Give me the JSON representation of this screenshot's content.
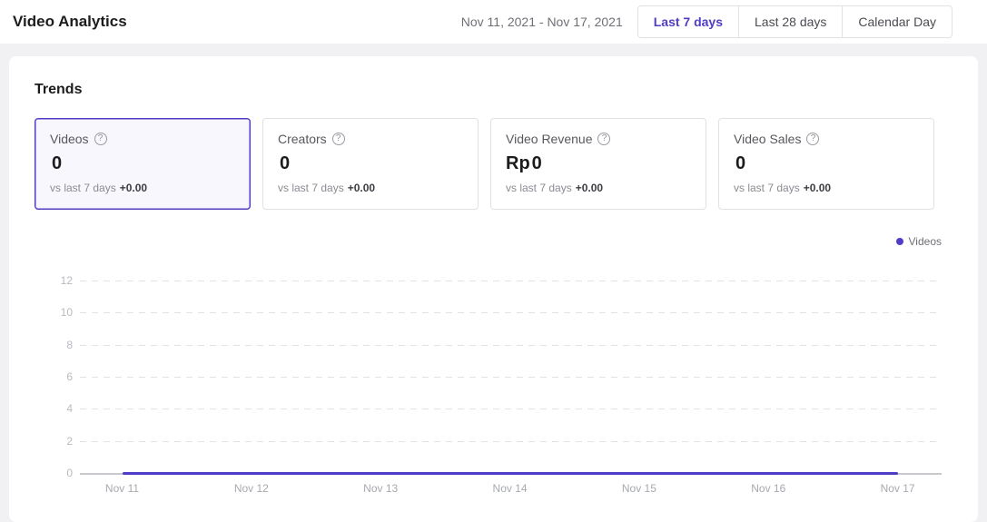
{
  "header": {
    "title": "Video Analytics",
    "date_range": "Nov 11, 2021 - Nov 17, 2021",
    "range_buttons": [
      {
        "label": "Last 7 days",
        "selected": true
      },
      {
        "label": "Last 28 days",
        "selected": false
      },
      {
        "label": "Calendar Day",
        "selected": false
      }
    ]
  },
  "trends": {
    "title": "Trends",
    "cards": [
      {
        "label": "Videos",
        "prefix": "",
        "value": "0",
        "compare_label": "vs last 7 days",
        "delta": "+0.00",
        "selected": true
      },
      {
        "label": "Creators",
        "prefix": "",
        "value": "0",
        "compare_label": "vs last 7 days",
        "delta": "+0.00",
        "selected": false
      },
      {
        "label": "Video Revenue",
        "prefix": "Rp",
        "value": "0",
        "compare_label": "vs last 7 days",
        "delta": "+0.00",
        "selected": false
      },
      {
        "label": "Video Sales",
        "prefix": "",
        "value": "0",
        "compare_label": "vs last 7 days",
        "delta": "+0.00",
        "selected": false
      }
    ]
  },
  "legend": {
    "label": "Videos",
    "color": "#4f3dc8"
  },
  "icons": {
    "help_glyph": "?"
  },
  "colors": {
    "accent": "#4f3dc8",
    "card_selected_bg": "#f7f7fd",
    "grid_line": "#e2e2e5",
    "baseline": "#c9c9cd",
    "axis_label": "#a7a9b0"
  },
  "chart_data": {
    "type": "line",
    "title": "Videos trend",
    "x": [
      "Nov 11",
      "Nov 12",
      "Nov 13",
      "Nov 14",
      "Nov 15",
      "Nov 16",
      "Nov 17"
    ],
    "series": [
      {
        "name": "Videos",
        "values": [
          0,
          0,
          0,
          0,
          0,
          0,
          0
        ]
      }
    ],
    "ylim": [
      0,
      12
    ],
    "yticks": [
      0,
      2,
      4,
      6,
      8,
      10,
      12
    ],
    "xlabel": "",
    "ylabel": "",
    "grid": "horizontal-dashed",
    "legend_position": "top-right",
    "line_color": "#4f3dc8"
  }
}
